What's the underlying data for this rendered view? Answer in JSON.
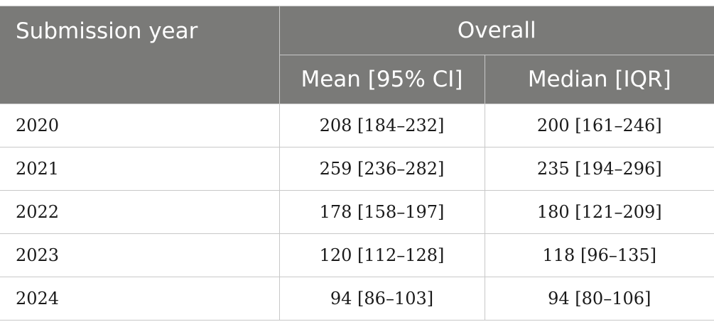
{
  "table": {
    "header": {
      "row_label": "Submission year",
      "group_label": "Overall",
      "subcolumns": [
        "Mean [95% CI]",
        "Median [IQR]"
      ]
    },
    "rows": [
      {
        "year": "2020",
        "mean": "208 [184–232]",
        "median": "200 [161–246]"
      },
      {
        "year": "2021",
        "mean": "259 [236–282]",
        "median": "235 [194–296]"
      },
      {
        "year": "2022",
        "mean": "178 [158–197]",
        "median": "180 [121–209]"
      },
      {
        "year": "2023",
        "mean": "120 [112–128]",
        "median": "118 [96–135]"
      },
      {
        "year": "2024",
        "mean": "94 [86–103]",
        "median": "94 [80–106]"
      }
    ]
  },
  "colors": {
    "header_background": "#7a7a78",
    "header_text": "#ffffff",
    "grid_lines": "#c8c8c8",
    "body_text": "#1a1a1a"
  }
}
